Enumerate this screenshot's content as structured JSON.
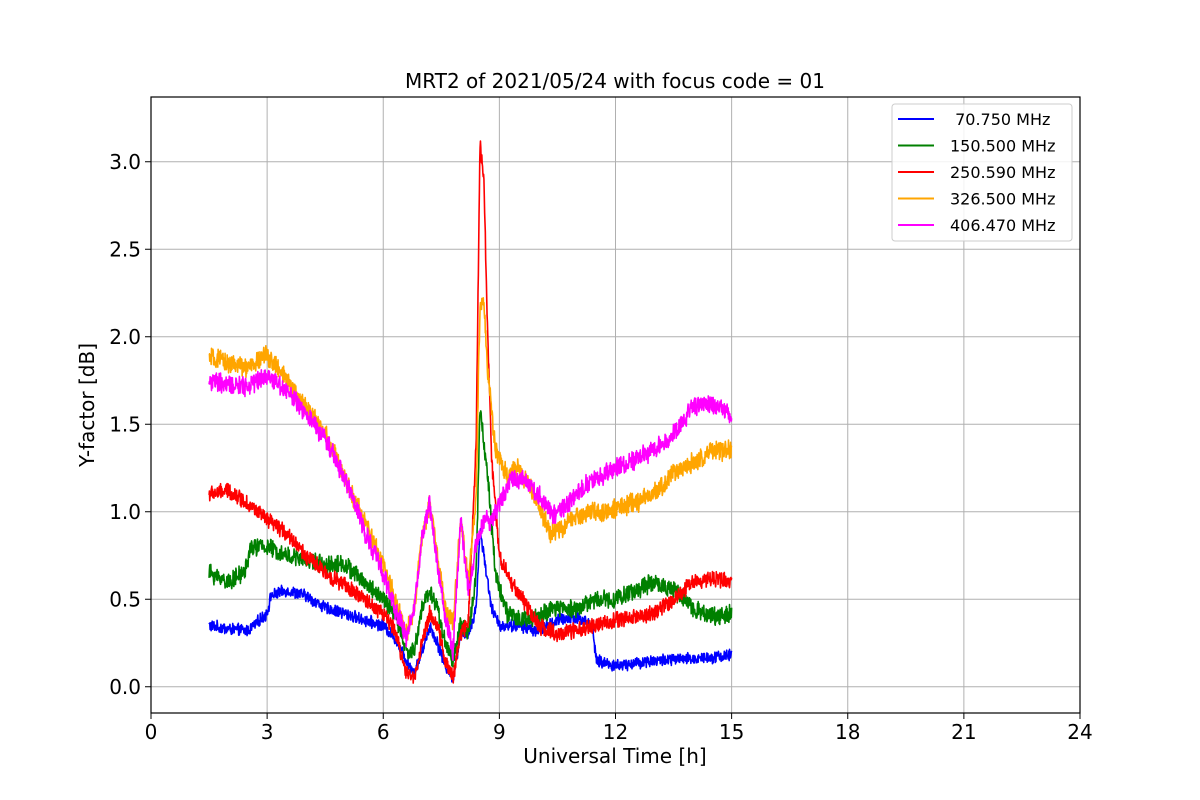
{
  "chart_data": {
    "type": "line",
    "title": "MRT2 of 2021/05/24 with focus code = 01",
    "xlabel": "Universal Time [h]",
    "ylabel": "Y-factor [dB]",
    "xlim": [
      0,
      24
    ],
    "ylim": [
      -0.15,
      3.37
    ],
    "xticks": [
      0,
      3,
      6,
      9,
      12,
      15,
      18,
      21,
      24
    ],
    "xtick_labels": [
      "0",
      "3",
      "6",
      "9",
      "12",
      "15",
      "18",
      "21",
      "24"
    ],
    "yticks": [
      0.0,
      0.5,
      1.0,
      1.5,
      2.0,
      2.5,
      3.0
    ],
    "ytick_labels": [
      "0.0",
      "0.5",
      "1.0",
      "1.5",
      "2.0",
      "2.5",
      "3.0"
    ],
    "grid": true,
    "legend_position": "top-right",
    "series": [
      {
        "name": " 70.750 MHz",
        "color": "#0000ff",
        "noise": 0.03,
        "points": [
          [
            1.5,
            0.35
          ],
          [
            2.0,
            0.33
          ],
          [
            2.5,
            0.32
          ],
          [
            3.0,
            0.42
          ],
          [
            3.1,
            0.52
          ],
          [
            3.5,
            0.55
          ],
          [
            4.0,
            0.52
          ],
          [
            4.5,
            0.45
          ],
          [
            5.0,
            0.42
          ],
          [
            5.5,
            0.38
          ],
          [
            6.0,
            0.35
          ],
          [
            6.3,
            0.28
          ],
          [
            6.6,
            0.15
          ],
          [
            6.8,
            0.08
          ],
          [
            7.0,
            0.2
          ],
          [
            7.2,
            0.35
          ],
          [
            7.4,
            0.25
          ],
          [
            7.6,
            0.12
          ],
          [
            7.8,
            0.05
          ],
          [
            8.0,
            0.3
          ],
          [
            8.2,
            0.3
          ],
          [
            8.4,
            0.45
          ],
          [
            8.5,
            0.9
          ],
          [
            8.6,
            0.75
          ],
          [
            8.8,
            0.45
          ],
          [
            9.0,
            0.35
          ],
          [
            9.5,
            0.35
          ],
          [
            10.0,
            0.32
          ],
          [
            10.5,
            0.38
          ],
          [
            11.0,
            0.4
          ],
          [
            11.4,
            0.35
          ],
          [
            11.5,
            0.15
          ],
          [
            12.0,
            0.12
          ],
          [
            13.0,
            0.15
          ],
          [
            14.0,
            0.16
          ],
          [
            15.0,
            0.18
          ]
        ]
      },
      {
        "name": "150.500 MHz",
        "color": "#008000",
        "noise": 0.045,
        "points": [
          [
            1.5,
            0.65
          ],
          [
            2.0,
            0.6
          ],
          [
            2.4,
            0.65
          ],
          [
            2.6,
            0.8
          ],
          [
            3.0,
            0.8
          ],
          [
            3.5,
            0.75
          ],
          [
            4.0,
            0.72
          ],
          [
            4.5,
            0.7
          ],
          [
            5.0,
            0.7
          ],
          [
            5.5,
            0.6
          ],
          [
            6.0,
            0.5
          ],
          [
            6.3,
            0.42
          ],
          [
            6.6,
            0.2
          ],
          [
            6.8,
            0.2
          ],
          [
            7.0,
            0.45
          ],
          [
            7.2,
            0.55
          ],
          [
            7.4,
            0.45
          ],
          [
            7.6,
            0.25
          ],
          [
            7.8,
            0.15
          ],
          [
            8.0,
            0.35
          ],
          [
            8.2,
            0.3
          ],
          [
            8.4,
            0.65
          ],
          [
            8.5,
            1.6
          ],
          [
            8.7,
            1.2
          ],
          [
            8.9,
            0.65
          ],
          [
            9.2,
            0.42
          ],
          [
            9.5,
            0.38
          ],
          [
            10.0,
            0.4
          ],
          [
            10.5,
            0.45
          ],
          [
            11.0,
            0.45
          ],
          [
            11.5,
            0.5
          ],
          [
            12.0,
            0.5
          ],
          [
            12.5,
            0.55
          ],
          [
            13.0,
            0.6
          ],
          [
            13.5,
            0.55
          ],
          [
            14.0,
            0.45
          ],
          [
            14.5,
            0.4
          ],
          [
            15.0,
            0.42
          ]
        ]
      },
      {
        "name": "250.590 MHz",
        "color": "#ff0000",
        "noise": 0.04,
        "points": [
          [
            1.5,
            1.1
          ],
          [
            2.0,
            1.12
          ],
          [
            2.5,
            1.05
          ],
          [
            3.0,
            0.95
          ],
          [
            3.5,
            0.88
          ],
          [
            4.0,
            0.75
          ],
          [
            4.5,
            0.65
          ],
          [
            5.0,
            0.58
          ],
          [
            5.5,
            0.5
          ],
          [
            6.0,
            0.42
          ],
          [
            6.3,
            0.32
          ],
          [
            6.6,
            0.08
          ],
          [
            6.8,
            0.05
          ],
          [
            7.0,
            0.25
          ],
          [
            7.2,
            0.42
          ],
          [
            7.4,
            0.35
          ],
          [
            7.6,
            0.15
          ],
          [
            7.8,
            0.05
          ],
          [
            8.0,
            0.3
          ],
          [
            8.2,
            0.38
          ],
          [
            8.4,
            1.4
          ],
          [
            8.5,
            3.1
          ],
          [
            8.6,
            2.9
          ],
          [
            8.7,
            2.0
          ],
          [
            8.8,
            1.3
          ],
          [
            9.0,
            0.75
          ],
          [
            9.3,
            0.6
          ],
          [
            9.6,
            0.5
          ],
          [
            10.0,
            0.35
          ],
          [
            10.5,
            0.3
          ],
          [
            11.0,
            0.32
          ],
          [
            11.5,
            0.35
          ],
          [
            12.0,
            0.38
          ],
          [
            12.5,
            0.4
          ],
          [
            13.0,
            0.42
          ],
          [
            13.5,
            0.5
          ],
          [
            14.0,
            0.6
          ],
          [
            14.5,
            0.62
          ],
          [
            15.0,
            0.6
          ]
        ]
      },
      {
        "name": "326.500 MHz",
        "color": "#ffa500",
        "noise": 0.05,
        "points": [
          [
            1.5,
            1.88
          ],
          [
            2.0,
            1.85
          ],
          [
            2.5,
            1.82
          ],
          [
            3.0,
            1.9
          ],
          [
            3.5,
            1.75
          ],
          [
            4.0,
            1.6
          ],
          [
            4.5,
            1.45
          ],
          [
            5.0,
            1.2
          ],
          [
            5.5,
            0.95
          ],
          [
            6.0,
            0.7
          ],
          [
            6.3,
            0.5
          ],
          [
            6.6,
            0.3
          ],
          [
            6.8,
            0.45
          ],
          [
            7.0,
            0.85
          ],
          [
            7.2,
            1.05
          ],
          [
            7.4,
            0.75
          ],
          [
            7.6,
            0.45
          ],
          [
            7.8,
            0.35
          ],
          [
            8.0,
            0.95
          ],
          [
            8.2,
            0.6
          ],
          [
            8.4,
            1.1
          ],
          [
            8.5,
            2.2
          ],
          [
            8.6,
            2.2
          ],
          [
            8.7,
            1.8
          ],
          [
            8.9,
            1.35
          ],
          [
            9.2,
            1.2
          ],
          [
            9.5,
            1.25
          ],
          [
            10.0,
            1.05
          ],
          [
            10.3,
            0.88
          ],
          [
            10.5,
            0.88
          ],
          [
            11.0,
            0.98
          ],
          [
            11.5,
            1.0
          ],
          [
            12.0,
            1.02
          ],
          [
            12.5,
            1.05
          ],
          [
            13.0,
            1.1
          ],
          [
            13.5,
            1.22
          ],
          [
            14.0,
            1.28
          ],
          [
            14.5,
            1.35
          ],
          [
            15.0,
            1.35
          ]
        ]
      },
      {
        "name": "406.470 MHz",
        "color": "#ff00ff",
        "noise": 0.05,
        "points": [
          [
            1.5,
            1.75
          ],
          [
            2.0,
            1.72
          ],
          [
            2.5,
            1.72
          ],
          [
            3.0,
            1.78
          ],
          [
            3.5,
            1.7
          ],
          [
            4.0,
            1.55
          ],
          [
            4.5,
            1.42
          ],
          [
            5.0,
            1.2
          ],
          [
            5.5,
            0.9
          ],
          [
            6.0,
            0.65
          ],
          [
            6.3,
            0.45
          ],
          [
            6.6,
            0.28
          ],
          [
            6.8,
            0.45
          ],
          [
            7.0,
            0.85
          ],
          [
            7.2,
            1.05
          ],
          [
            7.4,
            0.7
          ],
          [
            7.6,
            0.4
          ],
          [
            7.8,
            0.2
          ],
          [
            8.0,
            0.95
          ],
          [
            8.2,
            0.55
          ],
          [
            8.4,
            0.8
          ],
          [
            8.6,
            0.95
          ],
          [
            8.8,
            0.95
          ],
          [
            9.0,
            1.05
          ],
          [
            9.3,
            1.18
          ],
          [
            9.6,
            1.2
          ],
          [
            10.0,
            1.1
          ],
          [
            10.4,
            0.98
          ],
          [
            10.8,
            1.05
          ],
          [
            11.2,
            1.15
          ],
          [
            11.6,
            1.2
          ],
          [
            12.0,
            1.25
          ],
          [
            12.5,
            1.3
          ],
          [
            13.0,
            1.35
          ],
          [
            13.5,
            1.45
          ],
          [
            14.0,
            1.6
          ],
          [
            14.5,
            1.62
          ],
          [
            15.0,
            1.55
          ]
        ]
      }
    ]
  }
}
